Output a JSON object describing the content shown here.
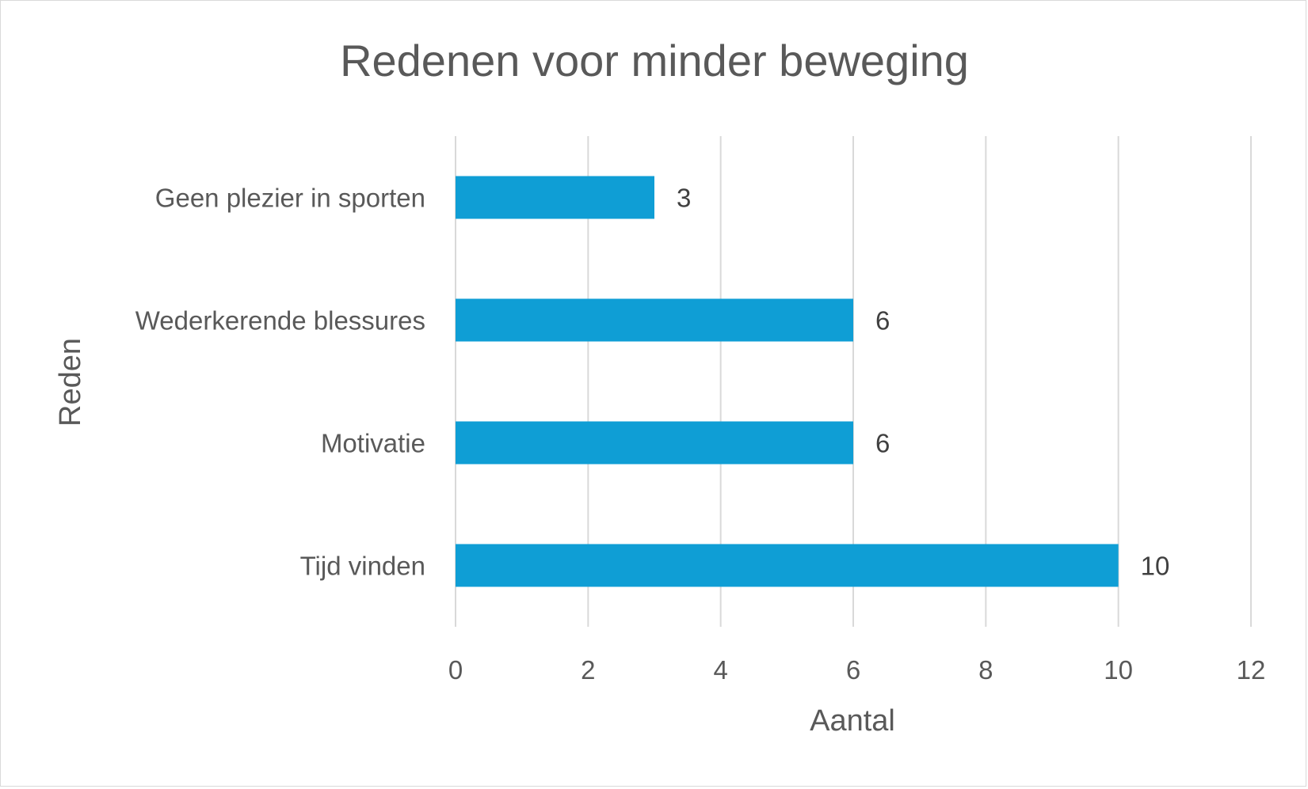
{
  "chart_data": {
    "type": "bar",
    "orientation": "horizontal",
    "title": "Redenen voor minder beweging",
    "xlabel": "Aantal",
    "ylabel": "Reden",
    "categories": [
      "Geen plezier in sporten",
      "Wederkerende blessures",
      "Motivatie",
      "Tijd vinden"
    ],
    "values": [
      3,
      6,
      6,
      10
    ],
    "xlim": [
      0,
      12
    ],
    "xticks": [
      0,
      2,
      4,
      6,
      8,
      10,
      12
    ],
    "grid": true,
    "data_labels": true,
    "bar_color": "#0f9ed5",
    "grid_color": "#d9d9d9",
    "text_color": "#595959"
  }
}
